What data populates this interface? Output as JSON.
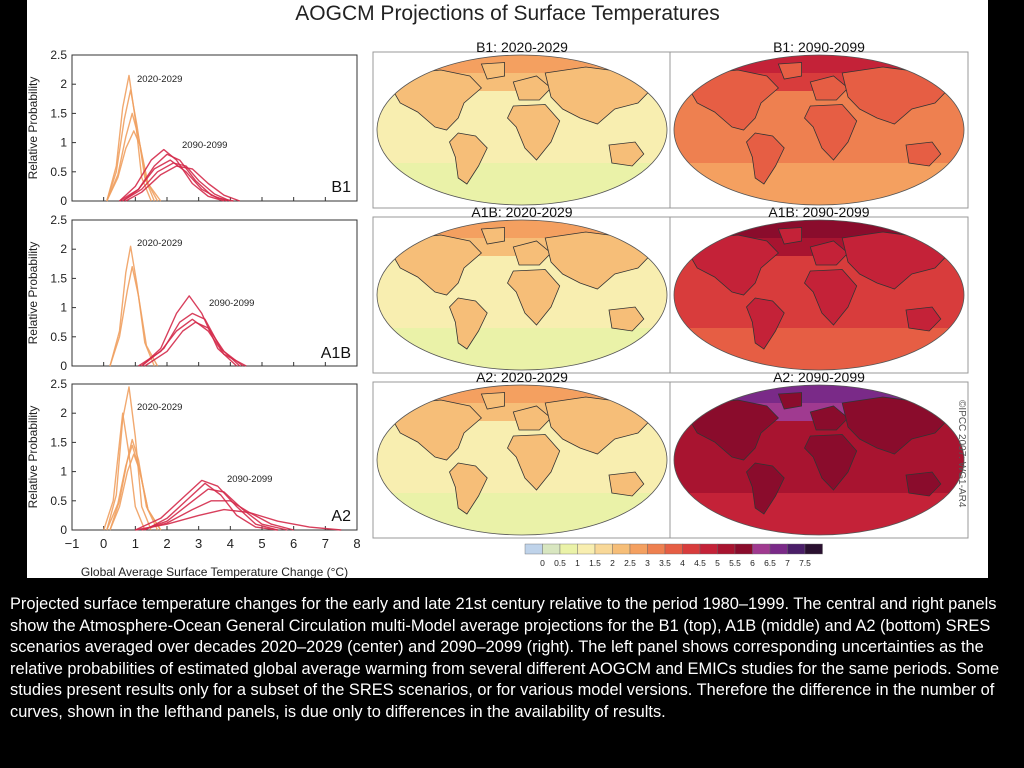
{
  "title": "AOGCM Projections of Surface Temperatures",
  "credit": "©IPCC 2007: WG1-AR4",
  "caption": "Projected surface temperature changes for the early and late 21st century relative to the period 1980–1999. The central and right panels show the Atmosphere-Ocean General Circulation multi-Model average projections for the B1 (top), A1B (middle) and A2 (bottom) SRES scenarios averaged over decades 2020–2029 (center) and 2090–2099 (right). The left panel shows corresponding uncertainties as the relative probabilities of estimated global average warming from several different AOGCM and EMICs studies for the same periods. Some studies present results only for a subset of the SRES scenarios, or for various model versions. Therefore the difference in the number of curves, shown in the lefthand panels, is due only to differences in the availability of results.",
  "colors": {
    "early_curve": "#f0a060",
    "late_curve": "#d42a4a",
    "ocean_base": "#f0f4b0",
    "land_base": "#f6c078"
  },
  "chart_data": [
    {
      "type": "line",
      "scenario": "B1",
      "xlabel": "",
      "ylabel": "Relative Probability",
      "xlim": [
        -1,
        8
      ],
      "ylim": [
        0,
        2.5
      ],
      "yticks": [
        "0",
        "0.5",
        "1",
        "1.5",
        "2",
        "2.5"
      ],
      "annotations": [
        "2020-2029",
        "2090-2099"
      ],
      "series": [
        {
          "period": "2020-2029",
          "x": [
            0.1,
            0.4,
            0.6,
            0.8,
            1.0,
            1.2,
            1.5
          ],
          "y": [
            0,
            0.6,
            1.6,
            2.15,
            1.4,
            0.4,
            0
          ]
        },
        {
          "period": "2020-2029",
          "x": [
            0.1,
            0.4,
            0.65,
            0.85,
            1.05,
            1.3,
            1.6
          ],
          "y": [
            0,
            0.5,
            1.4,
            1.9,
            1.3,
            0.4,
            0
          ]
        },
        {
          "period": "2020-2029",
          "x": [
            0.1,
            0.45,
            0.7,
            0.9,
            1.1,
            1.35,
            1.7
          ],
          "y": [
            0,
            0.45,
            1.1,
            1.5,
            1.1,
            0.35,
            0
          ]
        },
        {
          "period": "2020-2029",
          "x": [
            0.1,
            0.45,
            0.7,
            0.95,
            1.15,
            1.4,
            1.8
          ],
          "y": [
            0,
            0.4,
            0.9,
            1.2,
            0.95,
            0.3,
            0
          ]
        },
        {
          "period": "2090-2099",
          "x": [
            0.5,
            1.0,
            1.5,
            1.9,
            2.3,
            2.8,
            3.3,
            3.8
          ],
          "y": [
            0,
            0.25,
            0.7,
            0.88,
            0.7,
            0.3,
            0.08,
            0
          ]
        },
        {
          "period": "2090-2099",
          "x": [
            0.6,
            1.1,
            1.6,
            2.0,
            2.4,
            2.9,
            3.4,
            3.9
          ],
          "y": [
            0,
            0.2,
            0.6,
            0.8,
            0.7,
            0.35,
            0.1,
            0
          ]
        },
        {
          "period": "2090-2099",
          "x": [
            0.6,
            1.2,
            1.7,
            2.2,
            2.6,
            3.0,
            3.5,
            4.0
          ],
          "y": [
            0,
            0.2,
            0.5,
            0.65,
            0.6,
            0.35,
            0.12,
            0
          ]
        },
        {
          "period": "2090-2099",
          "x": [
            0.7,
            1.2,
            1.8,
            2.3,
            2.8,
            3.3,
            3.8,
            4.3
          ],
          "y": [
            0,
            0.15,
            0.45,
            0.6,
            0.55,
            0.3,
            0.1,
            0
          ]
        },
        {
          "period": "2090-2099",
          "x": [
            0.5,
            1.1,
            1.6,
            2.1,
            2.6,
            3.1,
            3.6,
            4.1
          ],
          "y": [
            0,
            0.2,
            0.55,
            0.7,
            0.5,
            0.2,
            0.05,
            0
          ]
        }
      ]
    },
    {
      "type": "line",
      "scenario": "A1B",
      "xlabel": "",
      "ylabel": "Relative Probability",
      "xlim": [
        -1,
        8
      ],
      "ylim": [
        0,
        2.5
      ],
      "yticks": [
        "0",
        "0.5",
        "1",
        "1.5",
        "2",
        "2.5"
      ],
      "annotations": [
        "2020-2029",
        "2090-2099"
      ],
      "series": [
        {
          "period": "2020-2029",
          "x": [
            0.2,
            0.5,
            0.7,
            0.85,
            1.05,
            1.3,
            1.6
          ],
          "y": [
            0,
            0.6,
            1.6,
            2.05,
            1.4,
            0.4,
            0
          ]
        },
        {
          "period": "2020-2029",
          "x": [
            0.2,
            0.5,
            0.75,
            0.9,
            1.1,
            1.35,
            1.7
          ],
          "y": [
            0,
            0.5,
            1.3,
            1.7,
            1.2,
            0.35,
            0
          ]
        },
        {
          "period": "2090-2099",
          "x": [
            1.2,
            1.8,
            2.3,
            2.7,
            3.1,
            3.6,
            4.2
          ],
          "y": [
            0,
            0.3,
            0.9,
            1.2,
            0.9,
            0.3,
            0
          ]
        },
        {
          "period": "2090-2099",
          "x": [
            1.2,
            1.9,
            2.4,
            2.8,
            3.2,
            3.7,
            4.3
          ],
          "y": [
            0,
            0.3,
            0.75,
            0.9,
            0.8,
            0.3,
            0
          ]
        },
        {
          "period": "2090-2099",
          "x": [
            1.3,
            2.0,
            2.5,
            2.9,
            3.3,
            3.8,
            4.4
          ],
          "y": [
            0,
            0.25,
            0.6,
            0.75,
            0.65,
            0.25,
            0
          ]
        },
        {
          "period": "2090-2099",
          "x": [
            1.1,
            1.8,
            2.3,
            2.8,
            3.3,
            3.8,
            4.5
          ],
          "y": [
            0,
            0.25,
            0.6,
            0.8,
            0.6,
            0.2,
            0
          ]
        }
      ]
    },
    {
      "type": "line",
      "scenario": "A2",
      "xlabel": "Global Average Surface Temperature Change (°C)",
      "ylabel": "Relative Probability",
      "xlim": [
        -1,
        8
      ],
      "ylim": [
        0,
        2.5
      ],
      "xticks": [
        "−1",
        "0",
        "1",
        "2",
        "3",
        "4",
        "5",
        "6",
        "7",
        "8"
      ],
      "yticks": [
        "0",
        "0.5",
        "1",
        "1.5",
        "2",
        "2.5"
      ],
      "annotations": [
        "2020-2029",
        "2090-2099"
      ],
      "series": [
        {
          "period": "2020-2029",
          "x": [
            0.1,
            0.4,
            0.6,
            0.8,
            1.0,
            1.2,
            1.5
          ],
          "y": [
            0,
            0.6,
            1.9,
            2.45,
            1.6,
            0.4,
            0
          ]
        },
        {
          "period": "2020-2029",
          "x": [
            0.0,
            0.3,
            0.5,
            0.6,
            0.8,
            1.0,
            1.3
          ],
          "y": [
            0,
            0.5,
            1.5,
            2.0,
            1.3,
            0.4,
            0
          ]
        },
        {
          "period": "2020-2029",
          "x": [
            0.2,
            0.5,
            0.75,
            0.9,
            1.1,
            1.35,
            1.7
          ],
          "y": [
            0,
            0.5,
            1.2,
            1.55,
            1.2,
            0.4,
            0
          ]
        },
        {
          "period": "2020-2029",
          "x": [
            0.2,
            0.5,
            0.75,
            0.95,
            1.15,
            1.4,
            1.8
          ],
          "y": [
            0,
            0.4,
            1.0,
            1.3,
            1.0,
            0.35,
            0
          ]
        },
        {
          "period": "2020-2029",
          "x": [
            0.1,
            0.45,
            0.7,
            0.9,
            1.1,
            1.4,
            1.8
          ],
          "y": [
            0,
            0.45,
            1.1,
            1.45,
            1.1,
            0.35,
            0
          ]
        },
        {
          "period": "2090-2099",
          "x": [
            1.0,
            1.8,
            2.5,
            3.1,
            3.6,
            4.2,
            4.8,
            5.5
          ],
          "y": [
            0,
            0.2,
            0.55,
            0.85,
            0.75,
            0.4,
            0.1,
            0
          ]
        },
        {
          "period": "2090-2099",
          "x": [
            1.2,
            2.0,
            2.7,
            3.3,
            3.8,
            4.4,
            5.0,
            5.8
          ],
          "y": [
            0,
            0.15,
            0.45,
            0.7,
            0.65,
            0.35,
            0.1,
            0
          ]
        },
        {
          "period": "2090-2099",
          "x": [
            1.2,
            2.0,
            2.8,
            3.4,
            4.0,
            4.6,
            5.3,
            6.0
          ],
          "y": [
            0,
            0.12,
            0.35,
            0.5,
            0.5,
            0.3,
            0.1,
            0
          ]
        },
        {
          "period": "2090-2099",
          "x": [
            1.0,
            2.0,
            3.0,
            3.8,
            4.6,
            5.5,
            6.5,
            7.5
          ],
          "y": [
            0,
            0.1,
            0.25,
            0.35,
            0.3,
            0.15,
            0.05,
            0
          ]
        },
        {
          "period": "2090-2099",
          "x": [
            1.3,
            2.0,
            2.7,
            3.2,
            3.7,
            4.2,
            4.8,
            5.5
          ],
          "y": [
            0,
            0.2,
            0.55,
            0.8,
            0.6,
            0.25,
            0.05,
            0
          ]
        }
      ]
    },
    {
      "type": "heatmap",
      "maps": [
        {
          "label": "B1: 2020-2029",
          "level": 1
        },
        {
          "label": "B1: 2090-2099",
          "level": 3
        },
        {
          "label": "A1B: 2020-2029",
          "level": 1
        },
        {
          "label": "A1B: 2090-2099",
          "level": 4
        },
        {
          "label": "A2: 2020-2029",
          "level": 1
        },
        {
          "label": "A2: 2090-2099",
          "level": 5
        }
      ],
      "colorbar": {
        "ticks": [
          "0",
          "0.5",
          "1",
          "1.5",
          "2",
          "2.5",
          "3",
          "3.5",
          "4",
          "4.5",
          "5",
          "5.5",
          "6",
          "6.5",
          "7",
          "7.5"
        ],
        "colors": [
          "#bfd3ea",
          "#d8e6c0",
          "#eaf2a8",
          "#f8eeb0",
          "#f8d898",
          "#f6be78",
          "#f4a060",
          "#ee8050",
          "#e65e44",
          "#d83c3c",
          "#c42238",
          "#a81430",
          "#8a0c2c",
          "#a03a90",
          "#7a2a88",
          "#4a1e68",
          "#2a1030"
        ]
      }
    }
  ]
}
